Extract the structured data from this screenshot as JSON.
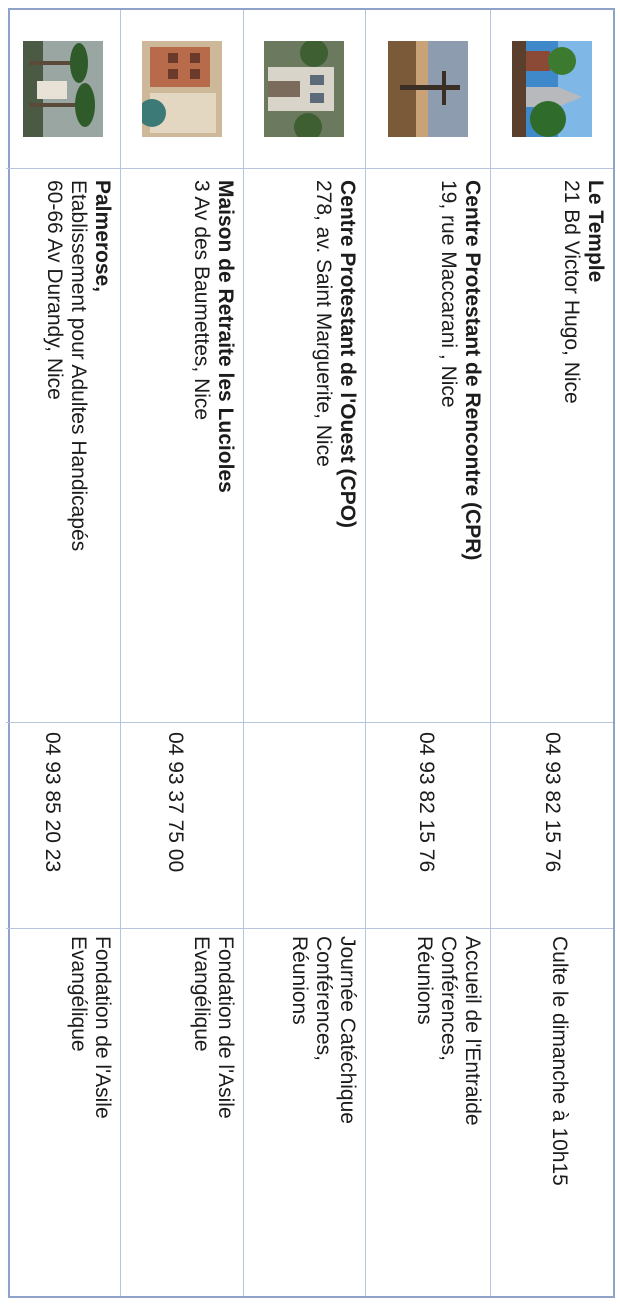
{
  "places": [
    {
      "name": "Le Temple",
      "address_lines": [
        "21 Bd Victor Hugo, Nice"
      ],
      "phone": "04 93 82 15 76",
      "activities": [
        "Culte le dimanche à 10h15"
      ],
      "photo_icon": "church-steeple-photo"
    },
    {
      "name": "Centre Protestant de Rencontre (CPR)",
      "address_lines": [
        "19, rue Maccarani , Nice"
      ],
      "phone": "04 93 82 15 76",
      "activities": [
        "Accueil de l'Entraide",
        "Conférences,",
        "Réunions"
      ],
      "photo_icon": "cross-at-sunset-photo"
    },
    {
      "name": "Centre Protestant de l'Ouest (CPO)",
      "address_lines": [
        "278, av. Saint Marguerite, Nice"
      ],
      "phone": "",
      "activities": [
        "Journée Catéchique",
        "Conférences,",
        "Réunions"
      ],
      "photo_icon": "building-facade-photo"
    },
    {
      "name": "Maison de Retraite les Lucioles",
      "address_lines": [
        "3 Av des Baumettes, Nice"
      ],
      "phone": "04 93 37 75 00",
      "activities": [
        "Fondation de l'Asile",
        "Evangélique"
      ],
      "photo_icon": "retirement-home-photo"
    },
    {
      "name": "Palmerose,",
      "address_lines": [
        "Etablissement pour Adultes Handicapés",
        "60-66 Av Durandy, Nice"
      ],
      "phone": "04 93 85 20 23",
      "activities": [
        "Fondation de l'Asile",
        "Evangélique"
      ],
      "photo_icon": "palm-trees-photo"
    }
  ]
}
